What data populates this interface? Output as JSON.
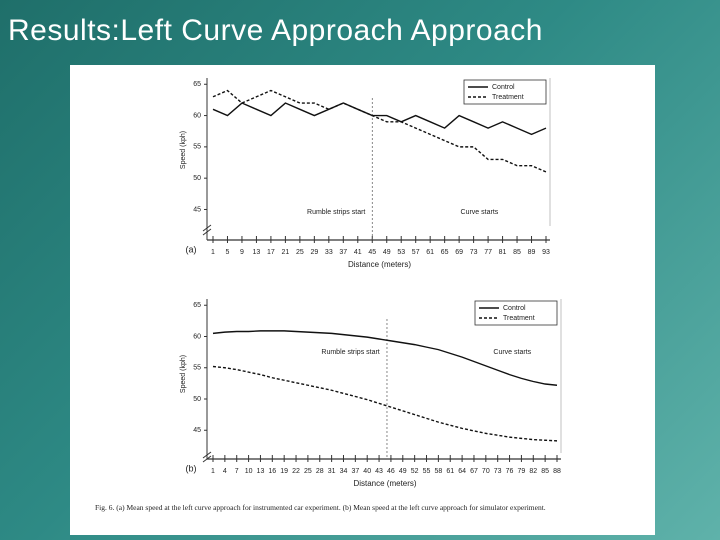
{
  "slide_title": "Results:Left Curve Approach Approach",
  "caption": "Fig. 6. (a) Mean speed at the left curve approach for instrumented car experiment. (b) Mean speed at the left curve approach for simulator experiment.",
  "chart_data": [
    {
      "type": "line",
      "panel_label": "(a)",
      "x_label": "Distance (meters)",
      "y_label": "Speed (kph)",
      "x": [
        1,
        5,
        9,
        13,
        17,
        21,
        25,
        29,
        33,
        37,
        41,
        45,
        49,
        53,
        57,
        61,
        65,
        69,
        73,
        77,
        81,
        85,
        89,
        93
      ],
      "series": [
        {
          "name": "Control",
          "color": "#111111",
          "style": "solid",
          "values": [
            61,
            60,
            62,
            61,
            60,
            62,
            61,
            60,
            61,
            62,
            61,
            60,
            60,
            59,
            60,
            59,
            58,
            60,
            59,
            58,
            59,
            58,
            57,
            58
          ]
        },
        {
          "name": "Treatment",
          "color": "#111111",
          "style": "dashed",
          "values": [
            63,
            64,
            62,
            63,
            64,
            63,
            62,
            62,
            61,
            62,
            61,
            60,
            59,
            59,
            58,
            57,
            56,
            55,
            55,
            53,
            53,
            52,
            52,
            51
          ]
        }
      ],
      "xlim": [
        1,
        93
      ],
      "xticks": [
        1,
        5,
        9,
        13,
        17,
        21,
        25,
        29,
        33,
        37,
        41,
        45,
        49,
        53,
        57,
        61,
        65,
        69,
        73,
        77,
        81,
        85,
        89,
        93
      ],
      "ylim": [
        43,
        66
      ],
      "yticks": [
        45,
        50,
        55,
        60,
        65
      ],
      "vline_x": 45,
      "annotations": [
        "Rumble strips start",
        "Curve starts"
      ],
      "legend": "upper right"
    },
    {
      "type": "line",
      "panel_label": "(b)",
      "x_label": "Distance (meters)",
      "y_label": "Speed (kph)",
      "x": [
        1,
        4,
        7,
        10,
        13,
        16,
        19,
        22,
        25,
        28,
        31,
        34,
        37,
        40,
        43,
        46,
        49,
        52,
        55,
        58,
        61,
        64,
        67,
        70,
        73,
        76,
        79,
        82,
        85,
        88
      ],
      "series": [
        {
          "name": "Control",
          "color": "#111111",
          "style": "solid",
          "values": [
            60.5,
            60.7,
            60.8,
            60.8,
            60.9,
            60.9,
            60.9,
            60.8,
            60.7,
            60.6,
            60.5,
            60.3,
            60.1,
            59.9,
            59.6,
            59.3,
            59.0,
            58.7,
            58.3,
            57.9,
            57.3,
            56.7,
            56.0,
            55.3,
            54.6,
            53.9,
            53.3,
            52.8,
            52.4,
            52.2
          ]
        },
        {
          "name": "Treatment",
          "color": "#111111",
          "style": "dashed",
          "values": [
            55.2,
            55.0,
            54.7,
            54.3,
            53.9,
            53.4,
            53.0,
            52.6,
            52.2,
            51.8,
            51.4,
            50.9,
            50.4,
            49.9,
            49.3,
            48.7,
            48.1,
            47.5,
            46.9,
            46.3,
            45.8,
            45.3,
            44.9,
            44.5,
            44.2,
            43.9,
            43.7,
            43.5,
            43.4,
            43.3
          ]
        }
      ],
      "xlim": [
        1,
        88
      ],
      "xticks": [
        1,
        4,
        7,
        10,
        13,
        16,
        19,
        22,
        25,
        28,
        31,
        34,
        37,
        40,
        43,
        46,
        49,
        52,
        55,
        58,
        61,
        64,
        67,
        70,
        73,
        76,
        79,
        82,
        85,
        88
      ],
      "ylim": [
        42,
        66
      ],
      "yticks": [
        45,
        50,
        55,
        60,
        65
      ],
      "vline_x": 45,
      "annotations": [
        "Rumble strips start",
        "Curve starts"
      ],
      "legend": "upper right"
    }
  ]
}
